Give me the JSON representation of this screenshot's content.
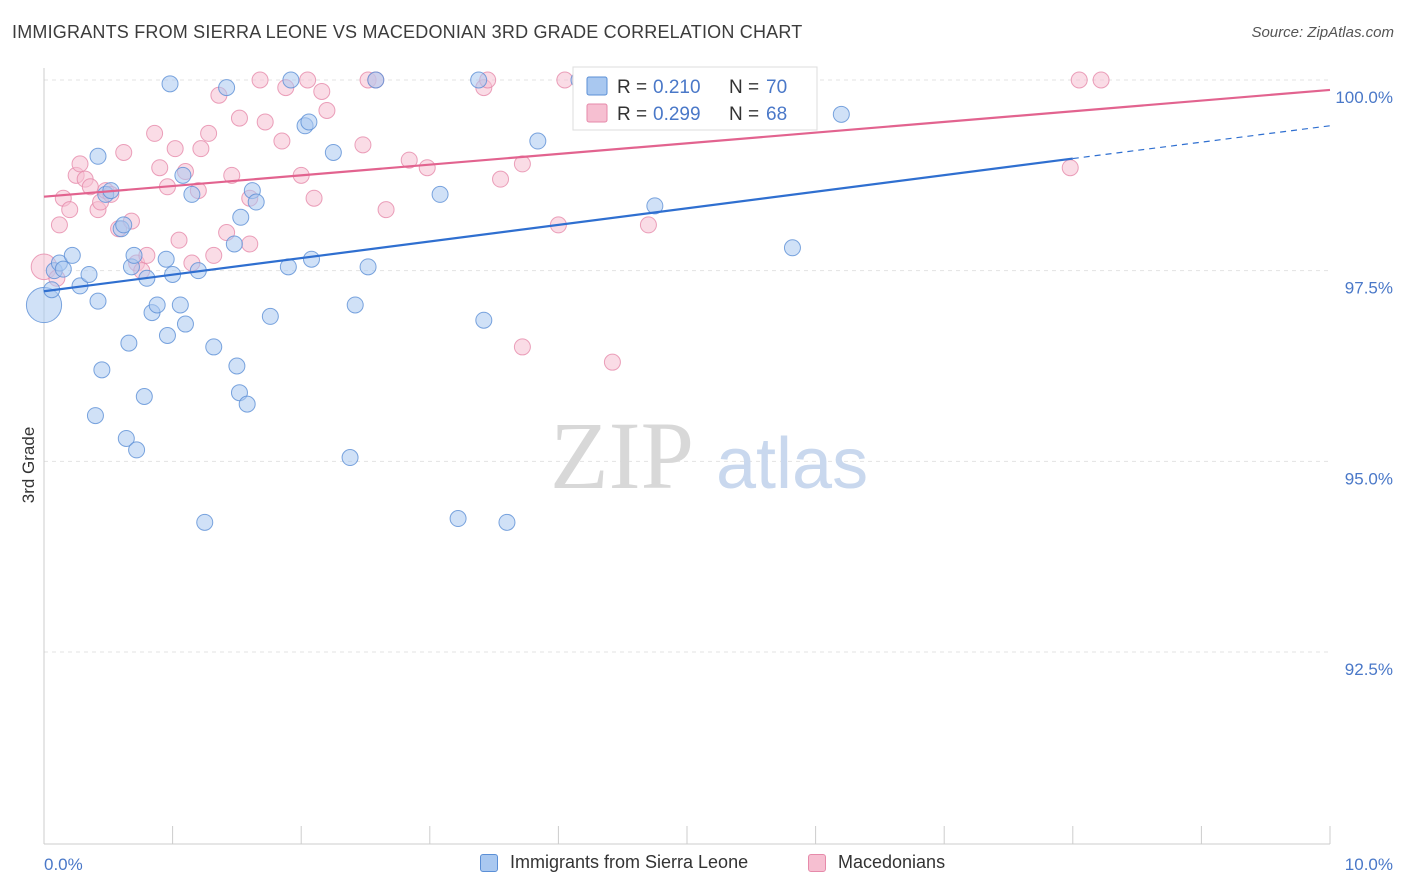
{
  "header": {
    "title": "IMMIGRANTS FROM SIERRA LEONE VS MACEDONIAN 3RD GRADE CORRELATION CHART",
    "source": "Source: ZipAtlas.com"
  },
  "watermark": {
    "zip": "ZIP",
    "atlas": "atlas"
  },
  "colors": {
    "blue_fill": "#a9c8f0",
    "blue_stroke": "#5b8fd6",
    "blue_line": "#2f6fd0",
    "pink_fill": "#f6bfd1",
    "pink_stroke": "#e68aaa",
    "pink_line": "#e2638f",
    "axis_text": "#4a78c8"
  },
  "legend": {
    "rows": [
      {
        "r_label": "R = ",
        "r_value": "0.210",
        "n_label": "N = ",
        "n_value": "70"
      },
      {
        "r_label": "R = ",
        "r_value": "0.299",
        "n_label": "N = ",
        "n_value": "68"
      }
    ],
    "bottom": [
      "Immigrants from Sierra Leone",
      "Macedonians"
    ]
  },
  "chart_data": {
    "type": "scatter",
    "title": "IMMIGRANTS FROM SIERRA LEONE VS MACEDONIAN 3RD GRADE CORRELATION CHART",
    "xlabel": "",
    "ylabel": "3rd Grade",
    "xlim": [
      0,
      10
    ],
    "ylim": [
      90.25,
      100.25
    ],
    "x_ticks": [
      0,
      1,
      2,
      3,
      4,
      5,
      6,
      7,
      8,
      9,
      10
    ],
    "x_tick_labels": {
      "0": "0.0%",
      "10": "10.0%"
    },
    "y_ticks": [
      92.5,
      95.0,
      97.5,
      100.0
    ],
    "y_tick_labels": [
      "92.5%",
      "95.0%",
      "97.5%",
      "100.0%"
    ],
    "grid": true,
    "series": [
      {
        "name": "Immigrants from Sierra Leone",
        "r": 0.21,
        "n": 70,
        "trend": {
          "x0": 0,
          "y0": 97.23,
          "x1": 8.0,
          "y1": 98.97,
          "dash_to_x": 10,
          "dash_to_y": 99.4
        },
        "points": [
          [
            0.0,
            97.05,
            2.2
          ],
          [
            0.06,
            97.25,
            1
          ],
          [
            0.08,
            97.5,
            1
          ],
          [
            0.12,
            97.6,
            1
          ],
          [
            0.15,
            97.52,
            1
          ],
          [
            0.22,
            97.7,
            1
          ],
          [
            0.28,
            97.3,
            1
          ],
          [
            0.35,
            97.45,
            1
          ],
          [
            0.42,
            97.1,
            1
          ],
          [
            0.45,
            96.2,
            1
          ],
          [
            0.4,
            95.6,
            1
          ],
          [
            0.42,
            99.0,
            1
          ],
          [
            0.48,
            98.5,
            1
          ],
          [
            0.52,
            98.55,
            1
          ],
          [
            0.6,
            98.05,
            1
          ],
          [
            0.62,
            98.1,
            1
          ],
          [
            0.64,
            95.3,
            1
          ],
          [
            0.66,
            96.55,
            1
          ],
          [
            0.68,
            97.55,
            1
          ],
          [
            0.7,
            97.7,
            1
          ],
          [
            0.72,
            95.15,
            1
          ],
          [
            0.78,
            95.85,
            1
          ],
          [
            0.8,
            97.4,
            1
          ],
          [
            0.84,
            96.95,
            1
          ],
          [
            0.88,
            97.05,
            1
          ],
          [
            0.95,
            97.65,
            1
          ],
          [
            0.96,
            96.65,
            1
          ],
          [
            0.98,
            99.95,
            1
          ],
          [
            1.0,
            97.45,
            1
          ],
          [
            1.06,
            97.05,
            1
          ],
          [
            1.08,
            98.75,
            1
          ],
          [
            1.1,
            96.8,
            1
          ],
          [
            1.15,
            98.5,
            1
          ],
          [
            1.2,
            97.5,
            1
          ],
          [
            1.25,
            94.2,
            1
          ],
          [
            1.32,
            96.5,
            1
          ],
          [
            1.42,
            99.9,
            1
          ],
          [
            1.48,
            97.85,
            1
          ],
          [
            1.5,
            96.25,
            1
          ],
          [
            1.52,
            95.9,
            1
          ],
          [
            1.53,
            98.2,
            1
          ],
          [
            1.58,
            95.75,
            1
          ],
          [
            1.62,
            98.55,
            1
          ],
          [
            1.65,
            98.4,
            1
          ],
          [
            1.76,
            96.9,
            1
          ],
          [
            1.9,
            97.55,
            1
          ],
          [
            1.92,
            100.0,
            1
          ],
          [
            2.03,
            99.4,
            1
          ],
          [
            2.06,
            99.45,
            1
          ],
          [
            2.08,
            97.65,
            1
          ],
          [
            2.25,
            99.05,
            1
          ],
          [
            2.38,
            95.05,
            1
          ],
          [
            2.42,
            97.05,
            1
          ],
          [
            2.52,
            97.55,
            1
          ],
          [
            2.58,
            100.0,
            1
          ],
          [
            3.08,
            98.5,
            1
          ],
          [
            3.22,
            94.25,
            1
          ],
          [
            3.38,
            100.0,
            1
          ],
          [
            3.42,
            96.85,
            1
          ],
          [
            3.6,
            94.2,
            1
          ],
          [
            3.84,
            99.2,
            1
          ],
          [
            4.16,
            100.0,
            1
          ],
          [
            4.75,
            98.35,
            1
          ],
          [
            5.82,
            97.8,
            1
          ],
          [
            6.2,
            99.55,
            1
          ]
        ]
      },
      {
        "name": "Macedonians",
        "r": 0.299,
        "n": 68,
        "trend": {
          "x0": 0,
          "y0": 98.47,
          "x1": 10,
          "y1": 99.87
        },
        "points": [
          [
            0.0,
            97.55,
            1.6
          ],
          [
            0.1,
            97.4,
            1
          ],
          [
            0.12,
            98.1,
            1
          ],
          [
            0.15,
            98.45,
            1
          ],
          [
            0.2,
            98.3,
            1
          ],
          [
            0.25,
            98.75,
            1
          ],
          [
            0.28,
            98.9,
            1
          ],
          [
            0.32,
            98.7,
            1
          ],
          [
            0.36,
            98.6,
            1
          ],
          [
            0.42,
            98.3,
            1
          ],
          [
            0.44,
            98.4,
            1
          ],
          [
            0.48,
            98.55,
            1
          ],
          [
            0.52,
            98.5,
            1
          ],
          [
            0.58,
            98.05,
            1
          ],
          [
            0.62,
            99.05,
            1
          ],
          [
            0.68,
            98.15,
            1
          ],
          [
            0.72,
            97.6,
            1
          ],
          [
            0.76,
            97.5,
            1
          ],
          [
            0.8,
            97.7,
            1
          ],
          [
            0.86,
            99.3,
            1
          ],
          [
            0.9,
            98.85,
            1
          ],
          [
            0.96,
            98.6,
            1
          ],
          [
            1.02,
            99.1,
            1
          ],
          [
            1.05,
            97.9,
            1
          ],
          [
            1.1,
            98.8,
            1
          ],
          [
            1.15,
            97.6,
            1
          ],
          [
            1.2,
            98.55,
            1
          ],
          [
            1.22,
            99.1,
            1
          ],
          [
            1.28,
            99.3,
            1
          ],
          [
            1.32,
            97.7,
            1
          ],
          [
            1.36,
            99.8,
            1
          ],
          [
            1.42,
            98.0,
            1
          ],
          [
            1.46,
            98.75,
            1
          ],
          [
            1.52,
            99.5,
            1
          ],
          [
            1.6,
            98.45,
            1
          ],
          [
            1.6,
            97.85,
            1
          ],
          [
            1.72,
            99.45,
            1
          ],
          [
            1.68,
            100.0,
            1
          ],
          [
            1.85,
            99.2,
            1
          ],
          [
            1.88,
            99.9,
            1
          ],
          [
            2.0,
            98.75,
            1
          ],
          [
            2.05,
            100.0,
            1
          ],
          [
            2.1,
            98.45,
            1
          ],
          [
            2.16,
            99.85,
            1
          ],
          [
            2.2,
            99.6,
            1
          ],
          [
            2.48,
            99.15,
            1
          ],
          [
            2.52,
            100.0,
            1
          ],
          [
            2.58,
            100.0,
            1
          ],
          [
            2.66,
            98.3,
            1
          ],
          [
            2.84,
            98.95,
            1
          ],
          [
            2.98,
            98.85,
            1
          ],
          [
            3.42,
            99.9,
            1
          ],
          [
            3.45,
            100.0,
            1
          ],
          [
            3.55,
            98.7,
            1
          ],
          [
            3.72,
            98.9,
            1
          ],
          [
            3.72,
            96.5,
            1
          ],
          [
            4.0,
            98.1,
            1
          ],
          [
            4.05,
            100.0,
            1
          ],
          [
            4.42,
            96.3,
            1
          ],
          [
            4.7,
            98.1,
            1
          ],
          [
            7.98,
            98.85,
            1
          ],
          [
            8.05,
            100.0,
            1
          ],
          [
            8.22,
            100.0,
            1
          ]
        ]
      }
    ]
  }
}
